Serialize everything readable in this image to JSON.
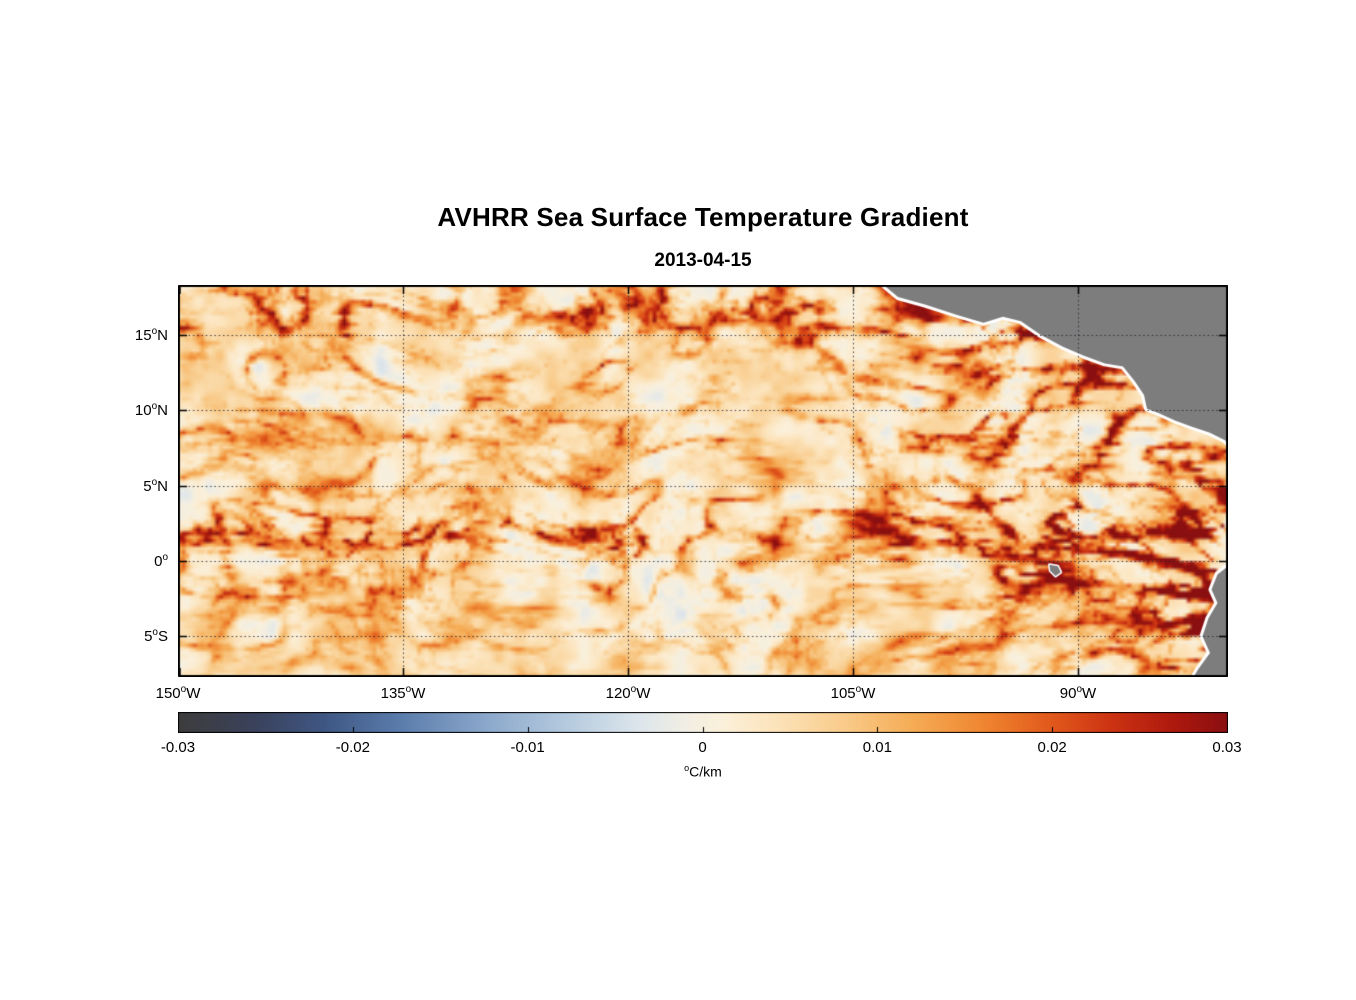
{
  "figure": {
    "title": "AVHRR Sea Surface Temperature Gradient",
    "subtitle": "2013-04-15"
  },
  "map": {
    "yticks": [
      {
        "v": "15",
        "sup": "o",
        "h": "N",
        "lat": 15
      },
      {
        "v": "10",
        "sup": "o",
        "h": "N",
        "lat": 10
      },
      {
        "v": "5",
        "sup": "o",
        "h": "N",
        "lat": 5
      },
      {
        "v": "0",
        "sup": "o",
        "h": "",
        "lat": 0
      },
      {
        "v": "5",
        "sup": "o",
        "h": "S",
        "lat": -5
      }
    ],
    "xticks": [
      {
        "v": "150",
        "sup": "o",
        "h": "W",
        "lon": -150
      },
      {
        "v": "135",
        "sup": "o",
        "h": "W",
        "lon": -135
      },
      {
        "v": "120",
        "sup": "o",
        "h": "W",
        "lon": -120
      },
      {
        "v": "105",
        "sup": "o",
        "h": "W",
        "lon": -105
      },
      {
        "v": "90",
        "sup": "o",
        "h": "W",
        "lon": -90
      }
    ],
    "grid": {
      "lats": [
        15,
        10,
        5,
        0,
        -5
      ],
      "lons": [
        -150,
        -135,
        -120,
        -105,
        -90
      ]
    },
    "land_color": "#7d7d7d",
    "coast_halo": "#ffffff"
  },
  "colorbar": {
    "ticks": [
      {
        "label": "-0.03",
        "value": -0.03
      },
      {
        "label": "-0.02",
        "value": -0.02
      },
      {
        "label": "-0.01",
        "value": -0.01
      },
      {
        "label": "0",
        "value": 0
      },
      {
        "label": "0.01",
        "value": 0.01
      },
      {
        "label": "0.02",
        "value": 0.02
      },
      {
        "label": "0.03",
        "value": 0.03
      }
    ],
    "unit_sup": "o",
    "unit_rest": "C/km"
  },
  "chart_data": {
    "type": "heatmap",
    "title": "AVHRR Sea Surface Temperature Gradient",
    "date": "2013-04-15",
    "units": "°C/km",
    "lon_range": [
      -150,
      -80
    ],
    "lat_range": [
      -7.7,
      18.3
    ],
    "value_range": [
      -0.03,
      0.03
    ],
    "xticks_deg_west": [
      150,
      135,
      120,
      105,
      90
    ],
    "yticks_deg": [
      15,
      10,
      5,
      0,
      -5
    ],
    "colorbar_ticks": [
      -0.03,
      -0.02,
      -0.01,
      0,
      0.01,
      0.02,
      0.03
    ],
    "colormap_stops": [
      {
        "t": 0.0,
        "c": "#3d3d3d"
      },
      {
        "t": 0.07,
        "c": "#3a415a"
      },
      {
        "t": 0.14,
        "c": "#3f5784"
      },
      {
        "t": 0.21,
        "c": "#5a7cab"
      },
      {
        "t": 0.29,
        "c": "#89a6ca"
      },
      {
        "t": 0.37,
        "c": "#b5cade"
      },
      {
        "t": 0.44,
        "c": "#dde6ec"
      },
      {
        "t": 0.49,
        "c": "#f4efe2"
      },
      {
        "t": 0.52,
        "c": "#fbf0da"
      },
      {
        "t": 0.57,
        "c": "#fce3ba"
      },
      {
        "t": 0.63,
        "c": "#f9cd8e"
      },
      {
        "t": 0.7,
        "c": "#f5ac55"
      },
      {
        "t": 0.77,
        "c": "#ef8430"
      },
      {
        "t": 0.83,
        "c": "#e25a1c"
      },
      {
        "t": 0.89,
        "c": "#cc3312"
      },
      {
        "t": 0.95,
        "c": "#ad180e"
      },
      {
        "t": 1.0,
        "c": "#8a0f10"
      }
    ],
    "field_model": {
      "seed": 20130415,
      "base_value": 0.003,
      "mottle_amp": 0.005,
      "filament_amp": 0.042,
      "band_floor": 0.18,
      "bands": [
        {
          "lat": 16.5,
          "amp": 0.95,
          "width": 2.3
        },
        {
          "lat": 12.5,
          "amp": 0.45,
          "width": 1.8
        },
        {
          "lat": 8.5,
          "amp": 0.55,
          "width": 2.0
        },
        {
          "lat": 5.0,
          "amp": 0.3,
          "width": 1.5
        },
        {
          "lat": 1.8,
          "amp": 0.95,
          "width": 1.9
        },
        {
          "lat": -1.8,
          "amp": 0.5,
          "width": 1.6
        },
        {
          "lat": -5.5,
          "amp": 0.32,
          "width": 1.6
        }
      ],
      "east_gain": 1.15,
      "east_start_lon": -108,
      "east_ramp": 22,
      "coastal_boost": {
        "lon": -81.5,
        "lon_width": 3.0,
        "lat_center": -3,
        "lat_width": 5.5,
        "amp": 1.3
      }
    },
    "land_polygons": [
      {
        "name": "mexico-central-america",
        "halo": 6,
        "points": [
          [
            -103.2,
            18.5
          ],
          [
            -102.0,
            17.5
          ],
          [
            -100.2,
            17.0
          ],
          [
            -98.0,
            16.3
          ],
          [
            -96.3,
            15.8
          ],
          [
            -95.0,
            16.2
          ],
          [
            -93.8,
            15.9
          ],
          [
            -92.5,
            15.0
          ],
          [
            -91.0,
            14.2
          ],
          [
            -89.6,
            13.6
          ],
          [
            -88.2,
            13.1
          ],
          [
            -87.0,
            12.9
          ],
          [
            -86.2,
            11.9
          ],
          [
            -85.6,
            11.0
          ],
          [
            -85.4,
            10.1
          ],
          [
            -84.6,
            9.8
          ],
          [
            -83.5,
            9.3
          ],
          [
            -82.4,
            8.9
          ],
          [
            -81.2,
            8.5
          ],
          [
            -80.2,
            8.0
          ],
          [
            -79.8,
            7.6
          ],
          [
            -79.8,
            18.5
          ]
        ]
      },
      {
        "name": "south-america",
        "halo": 6,
        "points": [
          [
            -79.8,
            -0.2
          ],
          [
            -80.7,
            -0.9
          ],
          [
            -81.1,
            -1.9
          ],
          [
            -80.7,
            -2.8
          ],
          [
            -81.3,
            -3.8
          ],
          [
            -81.7,
            -5.0
          ],
          [
            -81.2,
            -6.1
          ],
          [
            -82.0,
            -7.2
          ],
          [
            -82.4,
            -7.9
          ],
          [
            -79.8,
            -7.9
          ]
        ]
      },
      {
        "name": "galapagos-islands",
        "halo": 3,
        "points": [
          [
            -91.9,
            -0.25
          ],
          [
            -91.35,
            -0.35
          ],
          [
            -91.15,
            -0.75
          ],
          [
            -91.5,
            -1.0
          ],
          [
            -91.85,
            -0.65
          ]
        ]
      }
    ]
  }
}
